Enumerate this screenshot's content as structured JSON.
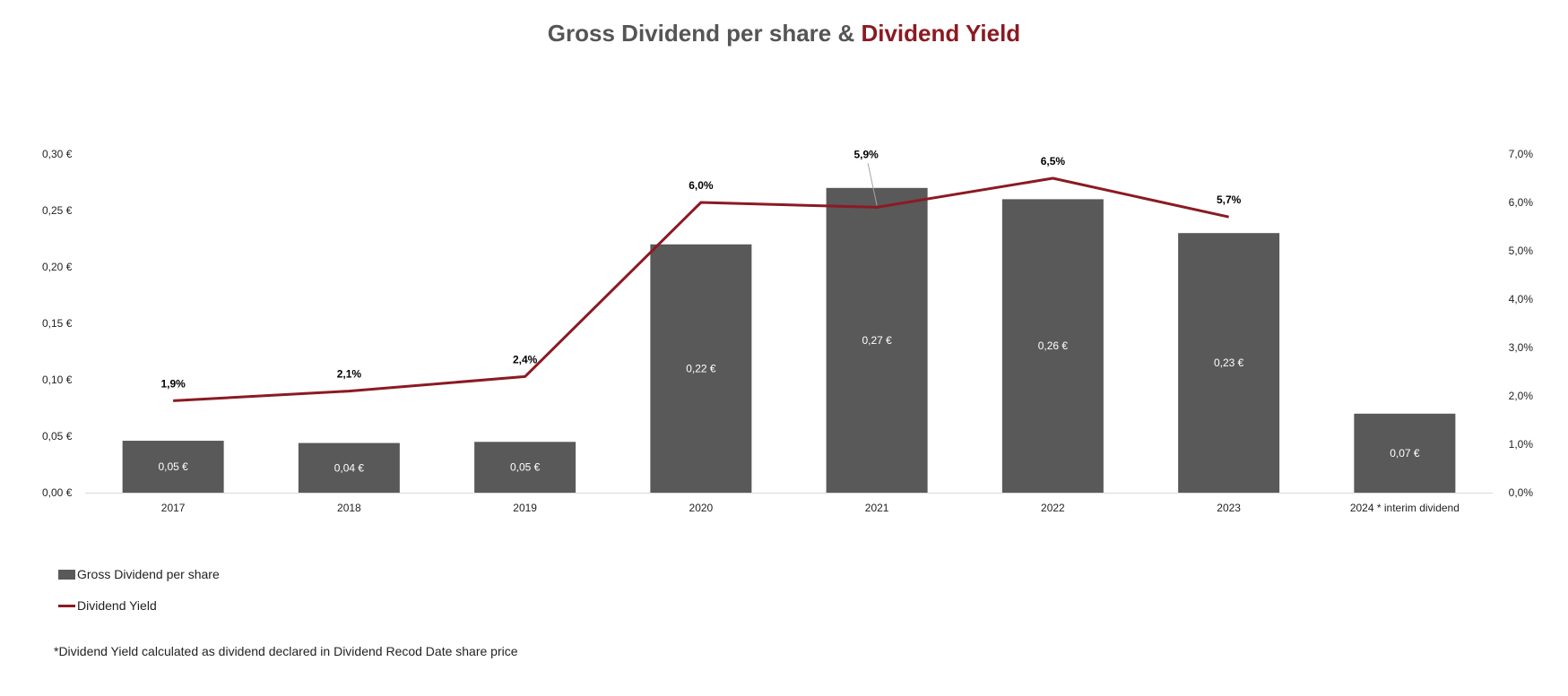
{
  "title": {
    "part1": "Gross Dividend per share & ",
    "part2": "Dividend Yield"
  },
  "colors": {
    "bar": "#595959",
    "line": "#8b1a22",
    "title_main": "#555555",
    "title_accent": "#8b1a22",
    "axis": "#d9d9d9"
  },
  "chart_data": {
    "type": "bar",
    "categories": [
      "2017",
      "2018",
      "2019",
      "2020",
      "2021",
      "2022",
      "2023",
      "2024 * interim dividend"
    ],
    "series": [
      {
        "name": "Gross Dividend per share",
        "type": "bar",
        "axis": "left",
        "values": [
          0.046,
          0.044,
          0.045,
          0.22,
          0.27,
          0.26,
          0.23,
          0.07
        ],
        "labels": [
          "0,05 €",
          "0,04 €",
          "0,05 €",
          "0,22 €",
          "0,27 €",
          "0,26 €",
          "0,23 €",
          "0,07 €"
        ]
      },
      {
        "name": "Dividend Yield",
        "type": "line",
        "axis": "right",
        "values": [
          1.9,
          2.1,
          2.4,
          6.0,
          5.9,
          6.5,
          5.7,
          null
        ],
        "labels": [
          "1,9%",
          "2,1%",
          "2,4%",
          "6,0%",
          "5,9%",
          "6,5%",
          "5,7%",
          ""
        ]
      }
    ],
    "y_left": {
      "min": 0,
      "max": 0.3,
      "ticks": [
        "0,00 €",
        "0,05 €",
        "0,10 €",
        "0,15 €",
        "0,20 €",
        "0,25 €",
        "0,30 €"
      ]
    },
    "y_right": {
      "min": 0,
      "max": 7.0,
      "ticks": [
        "0,0%",
        "1,0%",
        "2,0%",
        "3,0%",
        "4,0%",
        "5,0%",
        "6,0%",
        "7,0%"
      ]
    },
    "grid": false,
    "legend_position": "bottom-left"
  },
  "legend": [
    {
      "label": "Gross Dividend per share"
    },
    {
      "label": "Dividend Yield"
    }
  ],
  "footnote": "*Dividend Yield calculated as dividend declared in Dividend Recod Date share price"
}
